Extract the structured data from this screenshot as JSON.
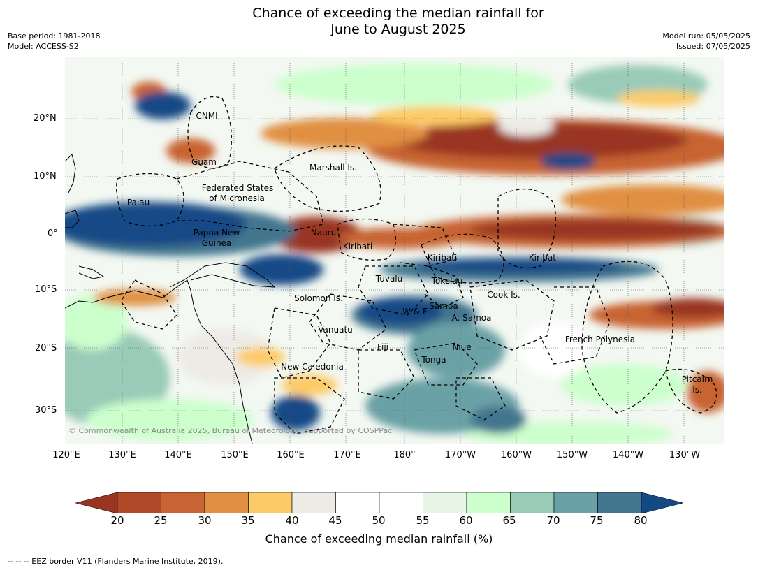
{
  "header": {
    "title_line1": "Chance of exceeding the median rainfall for",
    "title_line2": "June to August 2025",
    "base_period": "Base period: 1981-2018",
    "model": "Model: ACCESS-S2",
    "model_run": "Model run: 05/05/2025",
    "issued": "Issued: 07/05/2025"
  },
  "axes": {
    "lat_ticks": [
      "20°N",
      "10°N",
      "0°",
      "10°S",
      "20°S",
      "30°S"
    ],
    "lon_ticks": [
      "120°E",
      "130°E",
      "140°E",
      "150°E",
      "160°E",
      "170°E",
      "180°",
      "170°W",
      "160°W",
      "150°W",
      "140°W",
      "130°W"
    ]
  },
  "places": [
    {
      "label": "CNMI"
    },
    {
      "label": "Guam"
    },
    {
      "label": "Marshall Is."
    },
    {
      "label": "Federated States"
    },
    {
      "label": "of Micronesia"
    },
    {
      "label": "Palau"
    },
    {
      "label": "Papua New"
    },
    {
      "label": "Guinea"
    },
    {
      "label": "Nauru"
    },
    {
      "label": "Kiribati"
    },
    {
      "label": "Kiribati"
    },
    {
      "label": "Kiribati"
    },
    {
      "label": "Tuvalu"
    },
    {
      "label": "Tokelau"
    },
    {
      "label": "Solomon Is."
    },
    {
      "label": "Cook Is."
    },
    {
      "label": "Samoa"
    },
    {
      "label": "W & F"
    },
    {
      "label": "A. Samoa"
    },
    {
      "label": "Vanuatu"
    },
    {
      "label": "Fiji"
    },
    {
      "label": "Niue"
    },
    {
      "label": "Tonga"
    },
    {
      "label": "French Polynesia"
    },
    {
      "label": "New Caledonia"
    },
    {
      "label": "Pitcairn"
    },
    {
      "label": "Is."
    }
  ],
  "copyright": "© Commonwealth of Australia 2025, Bureau of Meteorology, supported by COSPPac",
  "colorbar": {
    "ticks": [
      "20",
      "25",
      "30",
      "35",
      "40",
      "45",
      "50",
      "55",
      "60",
      "65",
      "70",
      "75",
      "80"
    ],
    "colors": [
      "#993520",
      "#b14a28",
      "#c86433",
      "#e19043",
      "#fccb67",
      "#eeebe6",
      "#ffffff",
      "#ffffff",
      "#e6f5e5",
      "#ccffcc",
      "#9acbb8",
      "#6aa1a6",
      "#43768f",
      "#134a86"
    ],
    "label": "Chance of exceeding median rainfall (%)"
  },
  "footnote": "--  --  -- EEZ border V11 (Flanders Marine Institute, 2019)."
}
